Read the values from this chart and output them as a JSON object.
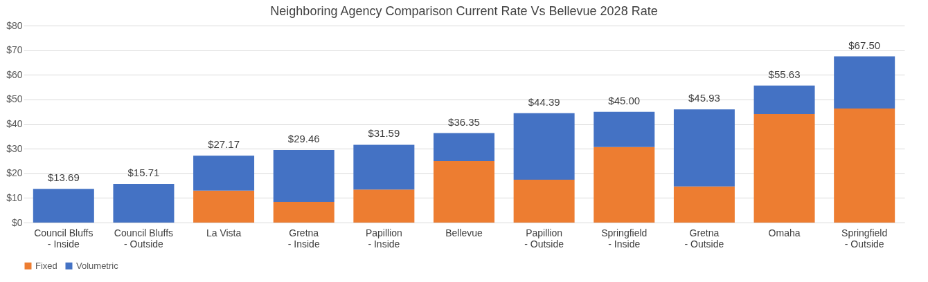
{
  "chart_data": {
    "type": "bar",
    "title": "Neighboring Agency Comparison Current Rate Vs Bellevue 2028 Rate",
    "categories": [
      "Council Bluffs - Inside",
      "Council Bluffs - Outside",
      "La Vista",
      "Gretna - Inside",
      "Papillion - Inside",
      "Bellevue",
      "Papillion - Outside",
      "Springfield - Inside",
      "Gretna - Outside",
      "Omaha",
      "Springfield - Outside"
    ],
    "stacked": true,
    "series": [
      {
        "name": "Fixed",
        "color": "#ed7d31",
        "values": [
          0,
          0,
          13,
          8.4,
          13.4,
          25,
          17.4,
          30.7,
          14.7,
          44.1,
          46.3
        ]
      },
      {
        "name": "Volumetric",
        "color": "#4472c4",
        "values": [
          13.69,
          15.71,
          14.17,
          21.06,
          18.19,
          11.35,
          26.99,
          14.3,
          31.23,
          11.53,
          21.2
        ]
      }
    ],
    "totals": [
      "$13.69",
      "$15.71",
      "$27.17",
      "$29.46",
      "$31.59",
      "$36.35",
      "$44.39",
      "$45.00",
      "$45.93",
      "$55.63",
      "$67.50"
    ],
    "ylim": [
      0,
      80
    ],
    "yticks": [
      {
        "value": 0,
        "label": "$0"
      },
      {
        "value": 10,
        "label": "$10"
      },
      {
        "value": 20,
        "label": "$20"
      },
      {
        "value": 30,
        "label": "$30"
      },
      {
        "value": 40,
        "label": "$40"
      },
      {
        "value": 50,
        "label": "$50"
      },
      {
        "value": 60,
        "label": "$60"
      },
      {
        "value": 70,
        "label": "$70"
      },
      {
        "value": 80,
        "label": "$80"
      }
    ],
    "grid": "y",
    "legend": "bottom"
  }
}
